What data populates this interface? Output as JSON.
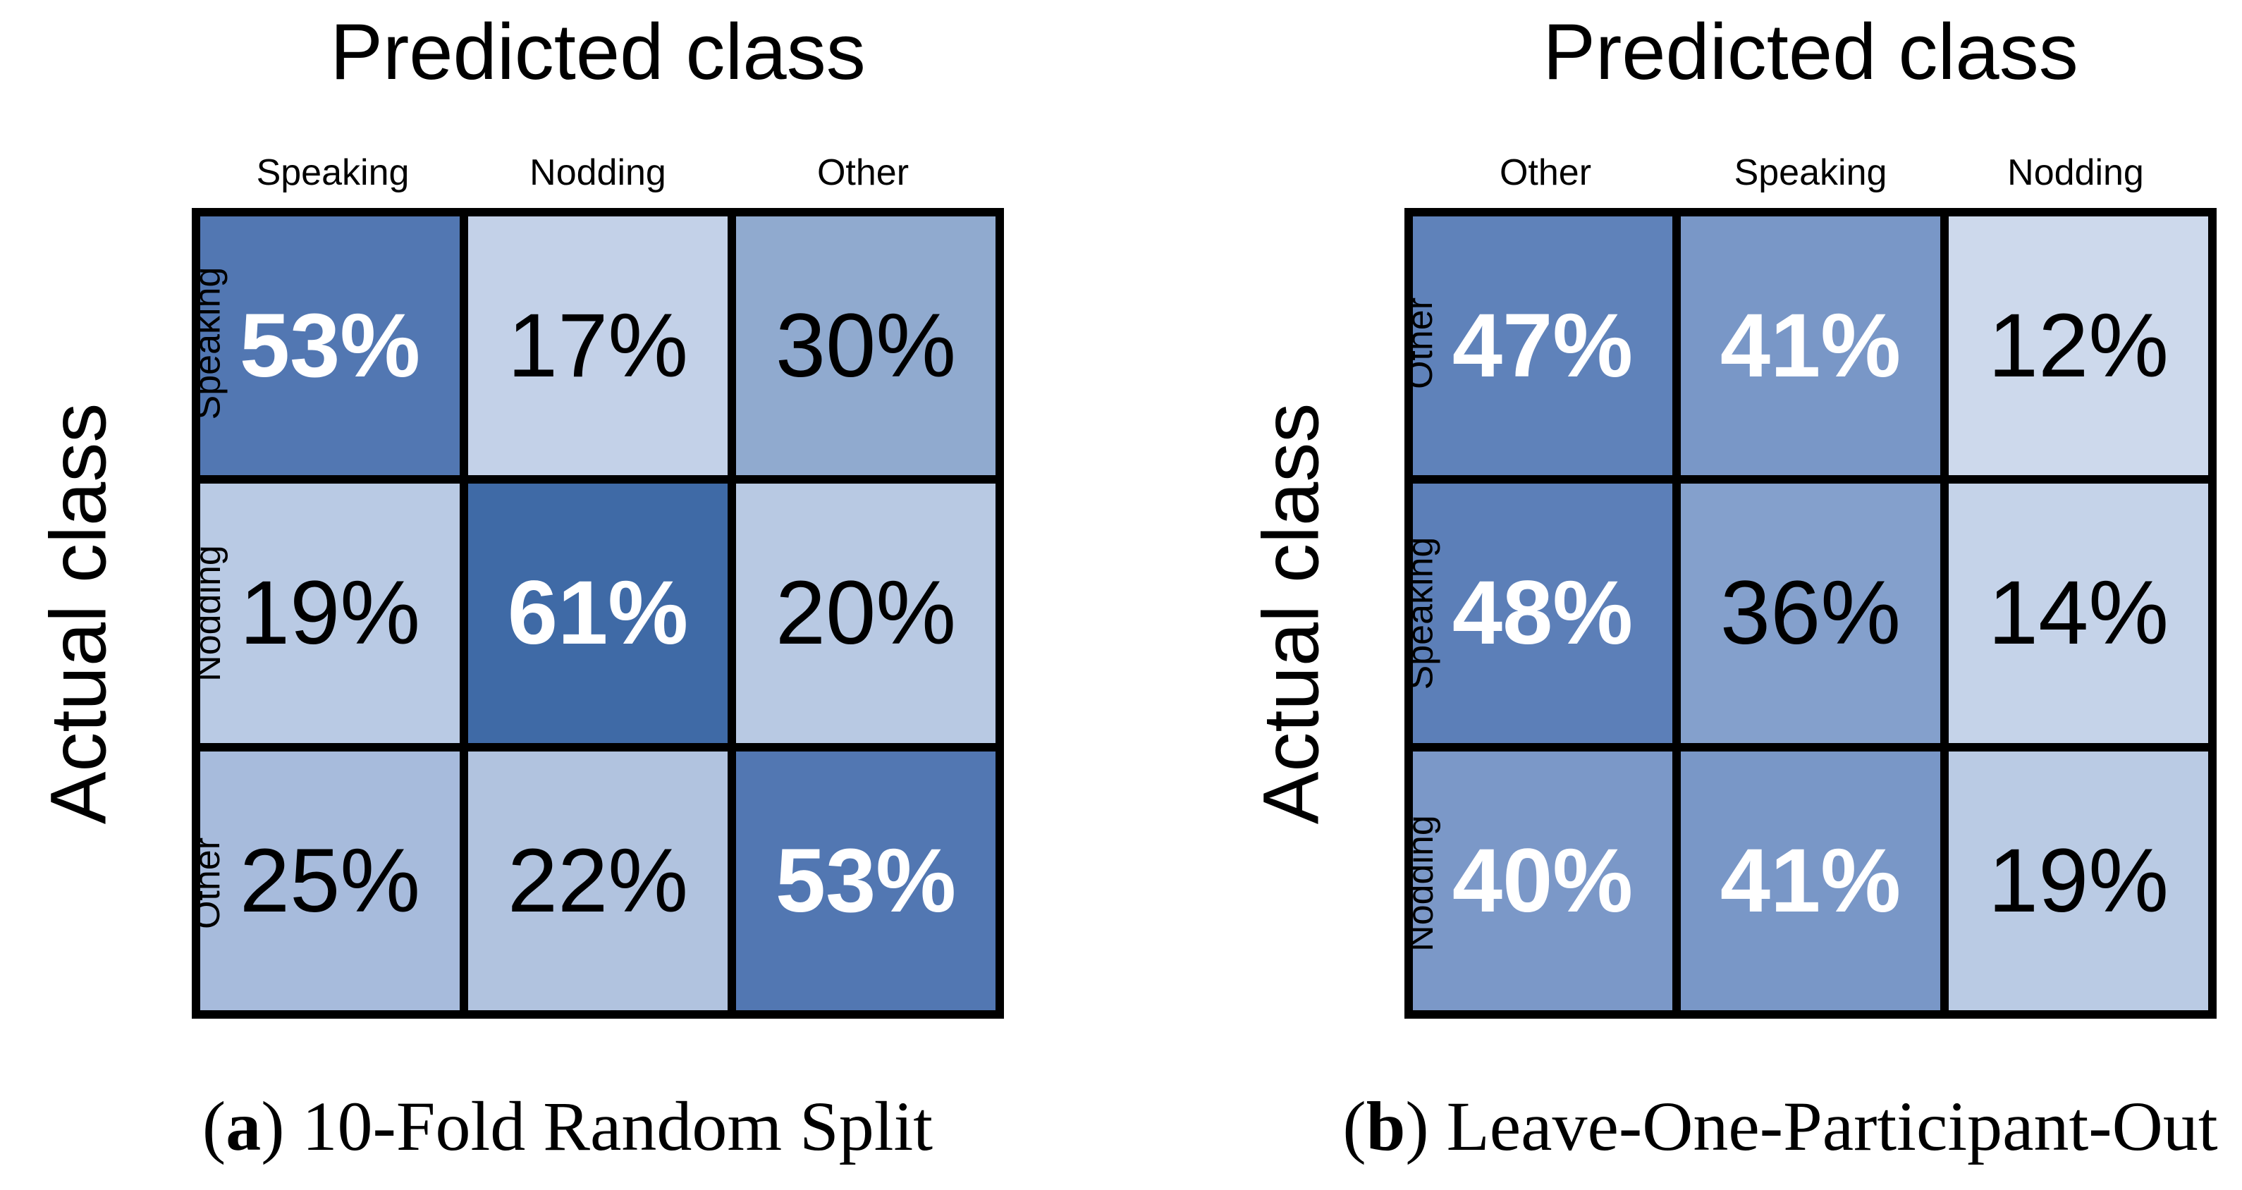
{
  "panels": [
    {
      "top_axis_label": "Predicted class",
      "left_axis_label": "Actual class",
      "col_labels": [
        "Speaking",
        "Nodding",
        "Other"
      ],
      "row_labels": [
        "Speaking",
        "Nodding",
        "Other"
      ],
      "caption": {
        "open": "(",
        "marker": "a",
        "close": ")",
        "text": "10-Fold Random Split"
      },
      "cells": [
        [
          {
            "value": "53%",
            "bg": "#5277B2",
            "fg": "#FFFFFF",
            "bold": true
          },
          {
            "value": "17%",
            "bg": "#C3D1E8",
            "fg": "#000000",
            "bold": false
          },
          {
            "value": "30%",
            "bg": "#90AACF",
            "fg": "#000000",
            "bold": false
          }
        ],
        [
          {
            "value": "19%",
            "bg": "#B9CAE4",
            "fg": "#000000",
            "bold": false
          },
          {
            "value": "61%",
            "bg": "#3F6AA6",
            "fg": "#FFFFFF",
            "bold": true
          },
          {
            "value": "20%",
            "bg": "#B8C9E3",
            "fg": "#000000",
            "bold": false
          }
        ],
        [
          {
            "value": "25%",
            "bg": "#A7BBDC",
            "fg": "#000000",
            "bold": false
          },
          {
            "value": "22%",
            "bg": "#B1C3DF",
            "fg": "#000000",
            "bold": false
          },
          {
            "value": "53%",
            "bg": "#5277B2",
            "fg": "#FFFFFF",
            "bold": true
          }
        ]
      ]
    },
    {
      "top_axis_label": "Predicted class",
      "left_axis_label": "Actual class",
      "col_labels": [
        "Other",
        "Speaking",
        "Nodding"
      ],
      "row_labels": [
        "Other",
        "Speaking",
        "Nodding"
      ],
      "caption": {
        "open": "(",
        "marker": "b",
        "close": ")",
        "text": "Leave-One-Participant-Out"
      },
      "cells": [
        [
          {
            "value": "47%",
            "bg": "#5F82BA",
            "fg": "#FFFFFF",
            "bold": true
          },
          {
            "value": "41%",
            "bg": "#7997C7",
            "fg": "#FFFFFF",
            "bold": true
          },
          {
            "value": "12%",
            "bg": "#CDD9EC",
            "fg": "#000000",
            "bold": false
          }
        ],
        [
          {
            "value": "48%",
            "bg": "#5C7FB8",
            "fg": "#FFFFFF",
            "bold": true
          },
          {
            "value": "36%",
            "bg": "#84A0CC",
            "fg": "#000000",
            "bold": false
          },
          {
            "value": "14%",
            "bg": "#C5D3E9",
            "fg": "#000000",
            "bold": false
          }
        ],
        [
          {
            "value": "40%",
            "bg": "#7B98C8",
            "fg": "#FFFFFF",
            "bold": true
          },
          {
            "value": "41%",
            "bg": "#7997C7",
            "fg": "#FFFFFF",
            "bold": true
          },
          {
            "value": "19%",
            "bg": "#BACBE4",
            "fg": "#000000",
            "bold": false
          }
        ]
      ]
    }
  ],
  "chart_data": [
    {
      "type": "heatmap",
      "title": "(a) 10-Fold Random Split",
      "xlabel": "Predicted class",
      "ylabel": "Actual class",
      "x_categories": [
        "Speaking",
        "Nodding",
        "Other"
      ],
      "y_categories": [
        "Speaking",
        "Nodding",
        "Other"
      ],
      "values": [
        [
          53,
          17,
          30
        ],
        [
          19,
          61,
          20
        ],
        [
          25,
          22,
          53
        ]
      ],
      "unit": "%",
      "colormap": "light-blue to dark-blue (higher = darker)",
      "grid": "black cell borders",
      "legend": "none"
    },
    {
      "type": "heatmap",
      "title": "(b) Leave-One-Participant-Out",
      "xlabel": "Predicted class",
      "ylabel": "Actual class",
      "x_categories": [
        "Other",
        "Speaking",
        "Nodding"
      ],
      "y_categories": [
        "Other",
        "Speaking",
        "Nodding"
      ],
      "values": [
        [
          47,
          41,
          12
        ],
        [
          48,
          36,
          14
        ],
        [
          40,
          41,
          19
        ]
      ],
      "unit": "%",
      "colormap": "light-blue to dark-blue (higher = darker)",
      "grid": "black cell borders",
      "legend": "none"
    }
  ]
}
